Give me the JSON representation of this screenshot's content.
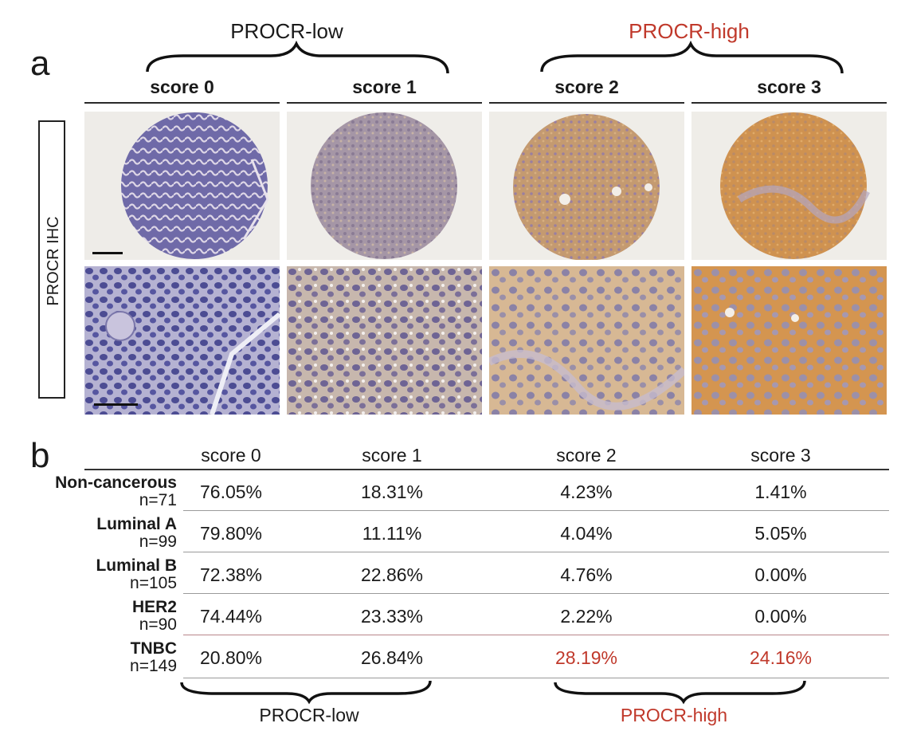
{
  "panel_a": {
    "letter": "a",
    "group_low": "PROCR-low",
    "group_high": "PROCR-high",
    "scores": [
      "score 0",
      "score 1",
      "score 2",
      "score 3"
    ],
    "row_label": "PROCR IHC"
  },
  "panel_b": {
    "letter": "b",
    "columns": [
      "score 0",
      "score 1",
      "score 2",
      "score 3"
    ],
    "rows": [
      {
        "name": "Non-cancerous",
        "n": "n=71",
        "values": [
          "76.05%",
          "18.31%",
          "4.23%",
          "1.41%"
        ]
      },
      {
        "name": "Luminal A",
        "n": "n=99",
        "values": [
          "79.80%",
          "11.11%",
          "4.04%",
          "5.05%"
        ]
      },
      {
        "name": "Luminal B",
        "n": "n=105",
        "values": [
          "72.38%",
          "22.86%",
          "4.76%",
          "0.00%"
        ]
      },
      {
        "name": "HER2",
        "n": "n=90",
        "values": [
          "74.44%",
          "23.33%",
          "2.22%",
          "0.00%"
        ]
      },
      {
        "name": "TNBC",
        "n": "n=149",
        "values": [
          "20.80%",
          "26.84%",
          "28.19%",
          "24.16%"
        ]
      }
    ],
    "group_low": "PROCR-low",
    "group_high": "PROCR-high"
  },
  "colors": {
    "highlight_red": "#c0392b",
    "hematoxylin_blue": "#5a5aa0",
    "dab_brown": "#c98a45"
  }
}
